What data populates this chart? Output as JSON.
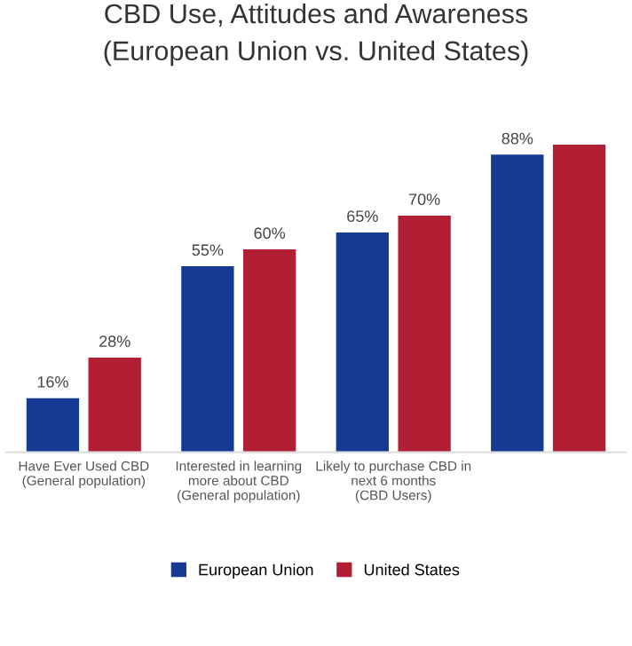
{
  "chart_data": {
    "type": "bar",
    "title": "CBD Use, Attitudes and Awareness\n(European Union vs. United States)",
    "categories": [
      "Have Ever Used CBD\n(General population)",
      "Interested in learning\nmore about CBD\n(General population)",
      "Likely to purchase CBD in\nnext 6 months\n(CBD Users)",
      null
    ],
    "series": [
      {
        "name": "European Union",
        "color": "#143a94",
        "values": [
          16,
          55,
          65,
          88
        ],
        "value_labels": [
          "16%",
          "55%",
          "65%",
          "88%"
        ]
      },
      {
        "name": "United States",
        "color": "#b21f35",
        "values": [
          28,
          60,
          70,
          91
        ],
        "value_labels": [
          "28%",
          "60%",
          "70%",
          null
        ]
      }
    ],
    "tick_labels": "x",
    "grid": false,
    "legend": "bottom"
  }
}
